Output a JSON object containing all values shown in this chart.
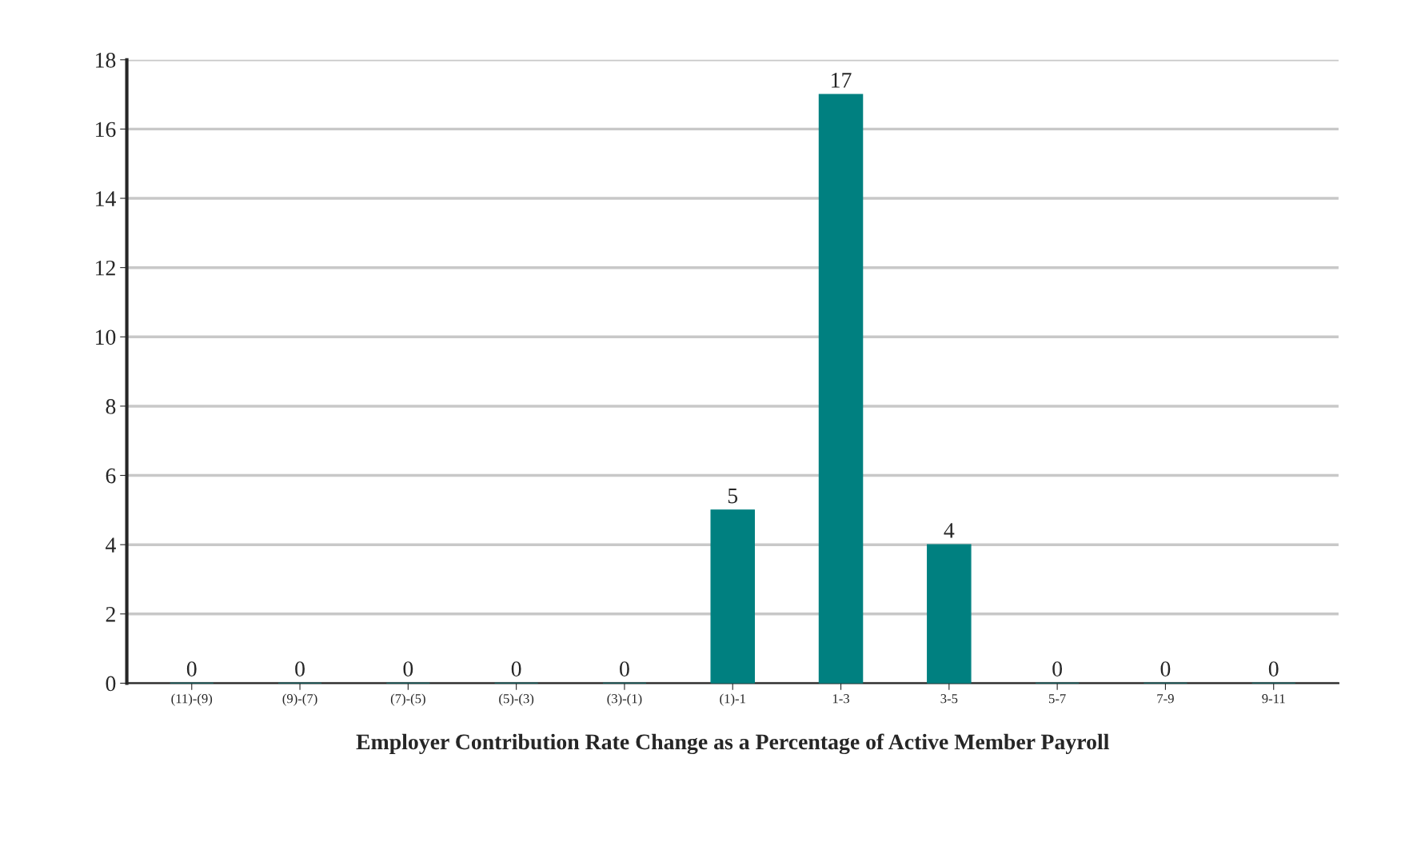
{
  "chart_data": {
    "type": "bar",
    "xlabel": "Employer Contribution Rate Change as a Percentage of Active Member Payroll",
    "categories": [
      "(11)-(9)",
      "(9)-(7)",
      "(7)-(5)",
      "(5)-(3)",
      "(3)-(1)",
      "(1)-1",
      "1-3",
      "3-5",
      "5-7",
      "7-9",
      "9-11"
    ],
    "values": [
      0,
      0,
      0,
      0,
      0,
      5,
      17,
      4,
      0,
      0,
      0
    ],
    "color": "#008080",
    "ylim": [
      0,
      18
    ],
    "yticks": [
      0,
      2,
      4,
      6,
      8,
      10,
      12,
      14,
      16,
      18
    ],
    "grid": "y",
    "data_labels": true
  }
}
